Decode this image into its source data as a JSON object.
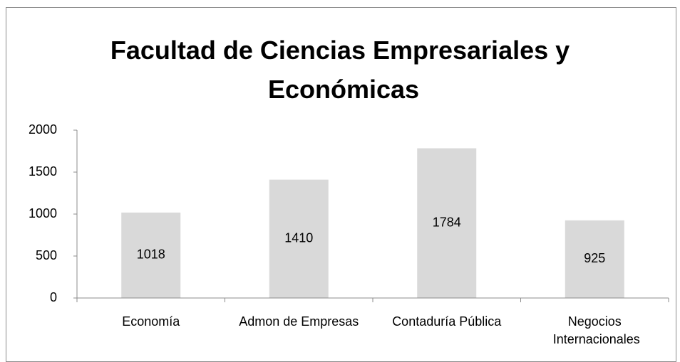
{
  "chart_data": {
    "type": "bar",
    "title": "Facultad de Ciencias Empresariales y Económicas",
    "categories": [
      "Economía",
      "Admon de Empresas",
      "Contaduría Pública",
      "Negocios Internacionales"
    ],
    "values": [
      1018,
      1410,
      1784,
      925
    ],
    "color": "#d9d9d9",
    "ylim": [
      0,
      2000
    ],
    "yticks": [
      0,
      500,
      1000,
      1500,
      2000
    ],
    "grid": false
  }
}
